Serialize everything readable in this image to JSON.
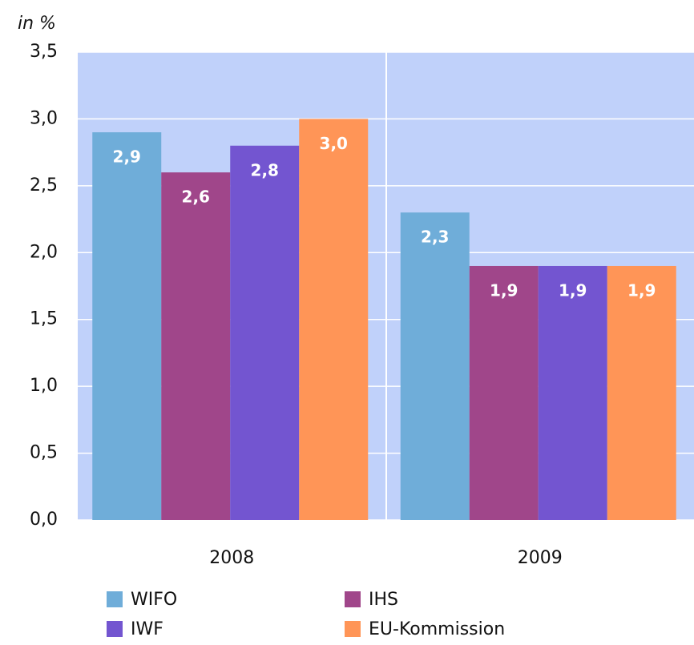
{
  "chart_data": {
    "type": "bar",
    "y_axis_label": "in %",
    "categories": [
      "2008",
      "2009"
    ],
    "series": [
      {
        "name": "WIFO",
        "color": "#6fadd9",
        "values": [
          2.9,
          2.3
        ],
        "value_labels": [
          "2,9",
          "2,3"
        ]
      },
      {
        "name": "IHS",
        "color": "#a0468a",
        "values": [
          2.6,
          1.9
        ],
        "value_labels": [
          "2,6",
          "1,9"
        ]
      },
      {
        "name": "IWF",
        "color": "#7355d0",
        "values": [
          2.8,
          1.9
        ],
        "value_labels": [
          "2,8",
          "1,9"
        ]
      },
      {
        "name": "EU-Kommission",
        "color": "#ff9557",
        "values": [
          3.0,
          1.9
        ],
        "value_labels": [
          "3,0",
          "1,9"
        ]
      }
    ],
    "ylim": [
      0,
      3.5
    ],
    "yticks": [
      {
        "value": 0,
        "label": "0,0"
      },
      {
        "value": 0.5,
        "label": "0,5"
      },
      {
        "value": 1,
        "label": "1,0"
      },
      {
        "value": 1.5,
        "label": "1,5"
      },
      {
        "value": 2,
        "label": "2,0"
      },
      {
        "value": 2.5,
        "label": "2,5"
      },
      {
        "value": 3,
        "label": "3,0"
      },
      {
        "value": 3.5,
        "label": "3,5"
      }
    ],
    "grid": true
  }
}
